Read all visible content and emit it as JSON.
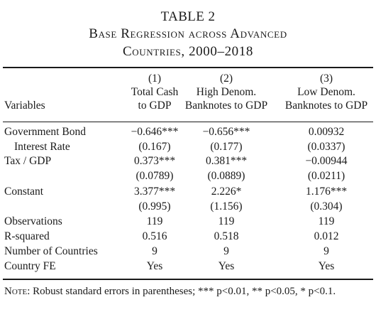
{
  "title": {
    "table_number": "TABLE 2",
    "subtitle_line1": "Base Regression across Advanced",
    "subtitle_line2": "Countries, 2000–2018"
  },
  "header": {
    "variables_label": "Variables",
    "columns": [
      {
        "number": "(1)",
        "line1": "Total Cash",
        "line2": "to GDP"
      },
      {
        "number": "(2)",
        "line1": "High Denom.",
        "line2": "Banknotes to GDP"
      },
      {
        "number": "(3)",
        "line1": "Low Denom.",
        "line2": "Banknotes to GDP"
      }
    ]
  },
  "rows": [
    {
      "label": "Government Bond",
      "values": [
        "−0.646***",
        "−0.656***",
        "0.00932"
      ]
    },
    {
      "label": "Interest Rate",
      "values": [
        "(0.167)",
        "(0.177)",
        "(0.0337)"
      ]
    },
    {
      "label": "Tax / GDP",
      "values": [
        "0.373***",
        "0.381***",
        "−0.00944"
      ]
    },
    {
      "label": "",
      "values": [
        "(0.0789)",
        "(0.0889)",
        "(0.0211)"
      ]
    },
    {
      "label": "Constant",
      "values": [
        "3.377***",
        "2.226*",
        "1.176***"
      ]
    },
    {
      "label": "",
      "values": [
        "(0.995)",
        "(1.156)",
        "(0.304)"
      ]
    },
    {
      "label": "Observations",
      "values": [
        "119",
        "119",
        "119"
      ]
    },
    {
      "label": "R-squared",
      "values": [
        "0.516",
        "0.518",
        "0.012"
      ]
    },
    {
      "label": "Number of Countries",
      "values": [
        "9",
        "9",
        "9"
      ]
    },
    {
      "label": "Country FE",
      "values": [
        "Yes",
        "Yes",
        "Yes"
      ]
    }
  ],
  "note": {
    "label": "Note:",
    "text": "Robust standard errors in parentheses; *** p<0.01, ** p<0.05, * p<0.1."
  }
}
